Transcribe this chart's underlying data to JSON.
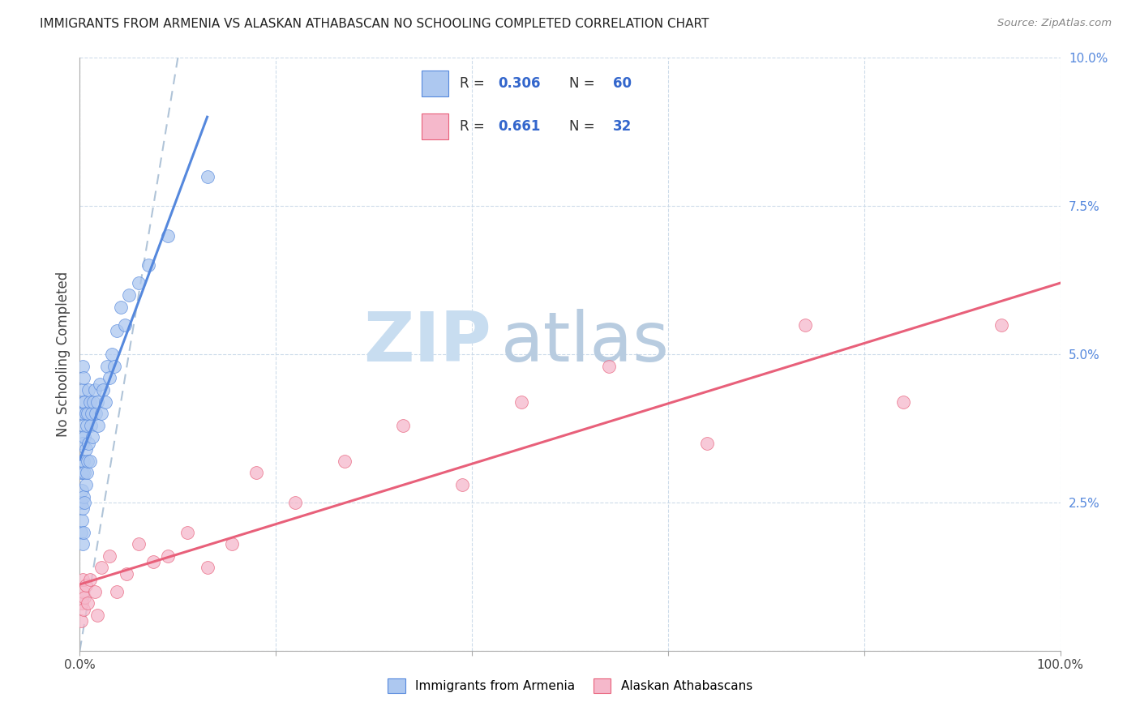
{
  "title": "IMMIGRANTS FROM ARMENIA VS ALASKAN ATHABASCAN NO SCHOOLING COMPLETED CORRELATION CHART",
  "source": "Source: ZipAtlas.com",
  "ylabel": "No Schooling Completed",
  "legend_label1": "Immigrants from Armenia",
  "legend_label2": "Alaskan Athabascans",
  "r1": "0.306",
  "n1": "60",
  "r2": "0.661",
  "n2": "32",
  "color1": "#adc8f0",
  "color2": "#f5b8cb",
  "line_color1": "#5588dd",
  "line_color2": "#e8607a",
  "diagonal_color": "#b0c4d8",
  "bg_color": "#ffffff",
  "grid_color": "#c8d8e8",
  "xlim": [
    0.0,
    1.0
  ],
  "ylim": [
    0.0,
    0.1
  ],
  "watermark_zip": "ZIP",
  "watermark_atlas": "atlas",
  "watermark_color_zip": "#c8ddf0",
  "watermark_color_atlas": "#b8cce0",
  "blue_x": [
    0.001,
    0.001,
    0.001,
    0.002,
    0.002,
    0.002,
    0.002,
    0.002,
    0.003,
    0.003,
    0.003,
    0.003,
    0.003,
    0.003,
    0.003,
    0.004,
    0.004,
    0.004,
    0.004,
    0.004,
    0.004,
    0.005,
    0.005,
    0.005,
    0.005,
    0.006,
    0.006,
    0.006,
    0.007,
    0.007,
    0.008,
    0.008,
    0.009,
    0.009,
    0.01,
    0.01,
    0.011,
    0.012,
    0.013,
    0.014,
    0.015,
    0.016,
    0.018,
    0.019,
    0.02,
    0.022,
    0.024,
    0.026,
    0.028,
    0.03,
    0.033,
    0.035,
    0.038,
    0.042,
    0.046,
    0.05,
    0.06,
    0.07,
    0.09,
    0.13
  ],
  "blue_y": [
    0.02,
    0.025,
    0.03,
    0.022,
    0.027,
    0.032,
    0.036,
    0.04,
    0.018,
    0.024,
    0.03,
    0.035,
    0.04,
    0.044,
    0.048,
    0.02,
    0.026,
    0.032,
    0.038,
    0.042,
    0.046,
    0.025,
    0.03,
    0.036,
    0.042,
    0.028,
    0.034,
    0.04,
    0.03,
    0.038,
    0.032,
    0.04,
    0.035,
    0.044,
    0.032,
    0.042,
    0.038,
    0.04,
    0.036,
    0.042,
    0.044,
    0.04,
    0.042,
    0.038,
    0.045,
    0.04,
    0.044,
    0.042,
    0.048,
    0.046,
    0.05,
    0.048,
    0.054,
    0.058,
    0.055,
    0.06,
    0.062,
    0.065,
    0.07,
    0.08
  ],
  "pink_x": [
    0.001,
    0.002,
    0.003,
    0.003,
    0.004,
    0.005,
    0.006,
    0.008,
    0.01,
    0.015,
    0.018,
    0.022,
    0.03,
    0.038,
    0.048,
    0.06,
    0.075,
    0.09,
    0.11,
    0.13,
    0.155,
    0.18,
    0.22,
    0.27,
    0.33,
    0.39,
    0.45,
    0.54,
    0.64,
    0.74,
    0.84,
    0.94
  ],
  "pink_y": [
    0.005,
    0.008,
    0.01,
    0.012,
    0.007,
    0.009,
    0.011,
    0.008,
    0.012,
    0.01,
    0.006,
    0.014,
    0.016,
    0.01,
    0.013,
    0.018,
    0.015,
    0.016,
    0.02,
    0.014,
    0.018,
    0.03,
    0.025,
    0.032,
    0.038,
    0.028,
    0.042,
    0.048,
    0.035,
    0.055,
    0.042,
    0.055
  ]
}
